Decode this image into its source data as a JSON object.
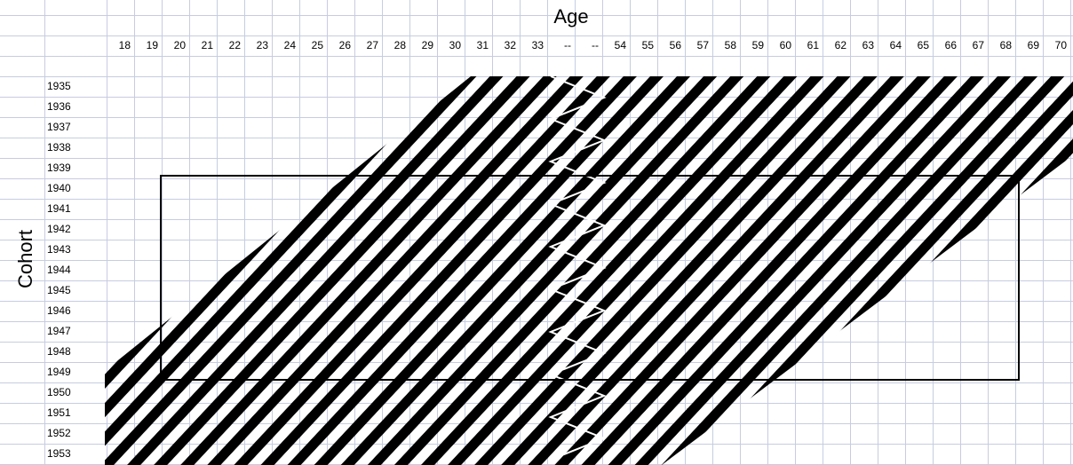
{
  "axis_titles": {
    "x": "Age",
    "y": "Cohort"
  },
  "ages": [
    "18",
    "19",
    "20",
    "21",
    "22",
    "23",
    "24",
    "25",
    "26",
    "27",
    "28",
    "29",
    "30",
    "31",
    "32",
    "33",
    "--",
    "--",
    "54",
    "55",
    "56",
    "57",
    "58",
    "59",
    "60",
    "61",
    "62",
    "63",
    "64",
    "65",
    "66",
    "67",
    "68",
    "69",
    "70"
  ],
  "cohorts": [
    "1935",
    "1936",
    "1937",
    "1938",
    "1939",
    "1940",
    "1941",
    "1942",
    "1943",
    "1944",
    "1945",
    "1946",
    "1947",
    "1948",
    "1949",
    "1950",
    "1951",
    "1952",
    "1953"
  ]
}
